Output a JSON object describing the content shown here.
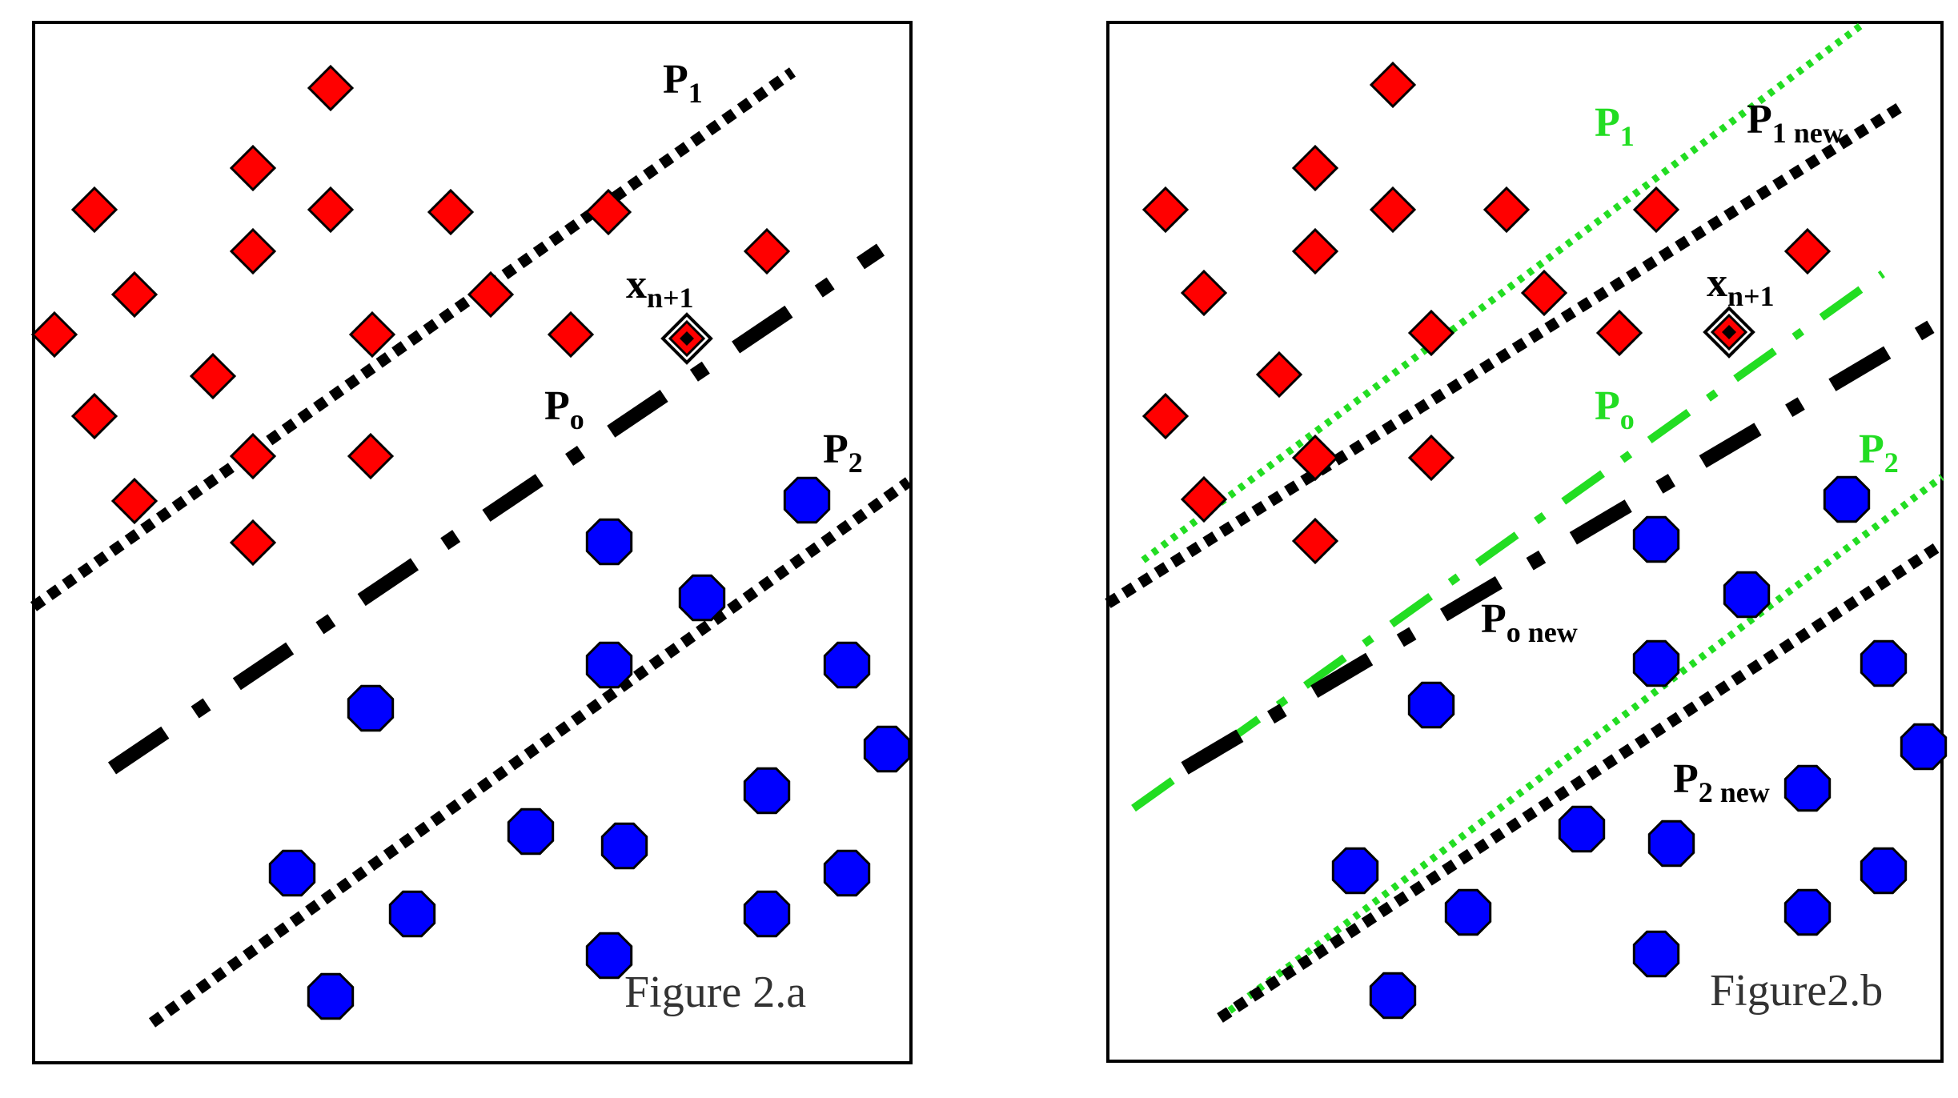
{
  "colors": {
    "class_a": "#ff0000",
    "class_b": "#0000ff",
    "black_line": "#000000",
    "green_line": "#22dd22",
    "frame": "#000000"
  },
  "icons": {
    "class_a_marker": "diamond",
    "class_b_marker": "octagon",
    "new_point_marker": "nested-diamond"
  },
  "panel_a": {
    "caption": "Figure 2.a",
    "labels": {
      "p1": {
        "main": "P",
        "sub": "1"
      },
      "po": {
        "main": "P",
        "sub": "o"
      },
      "p2": {
        "main": "P",
        "sub": "2"
      },
      "x": {
        "main": "x",
        "sub": "n+1"
      }
    }
  },
  "panel_b": {
    "caption": "Figure2.b",
    "labels": {
      "p1_green": {
        "main": "P",
        "sub": "1"
      },
      "p1_new": {
        "main": "P",
        "sub": "1 new"
      },
      "po_green": {
        "main": "P",
        "sub": "o"
      },
      "po_new": {
        "main": "P",
        "sub": "o new"
      },
      "p2_green": {
        "main": "P",
        "sub": "2"
      },
      "p2_new": {
        "main": "P",
        "sub": "2 new"
      },
      "x": {
        "main": "x",
        "sub": "n+1"
      }
    }
  }
}
